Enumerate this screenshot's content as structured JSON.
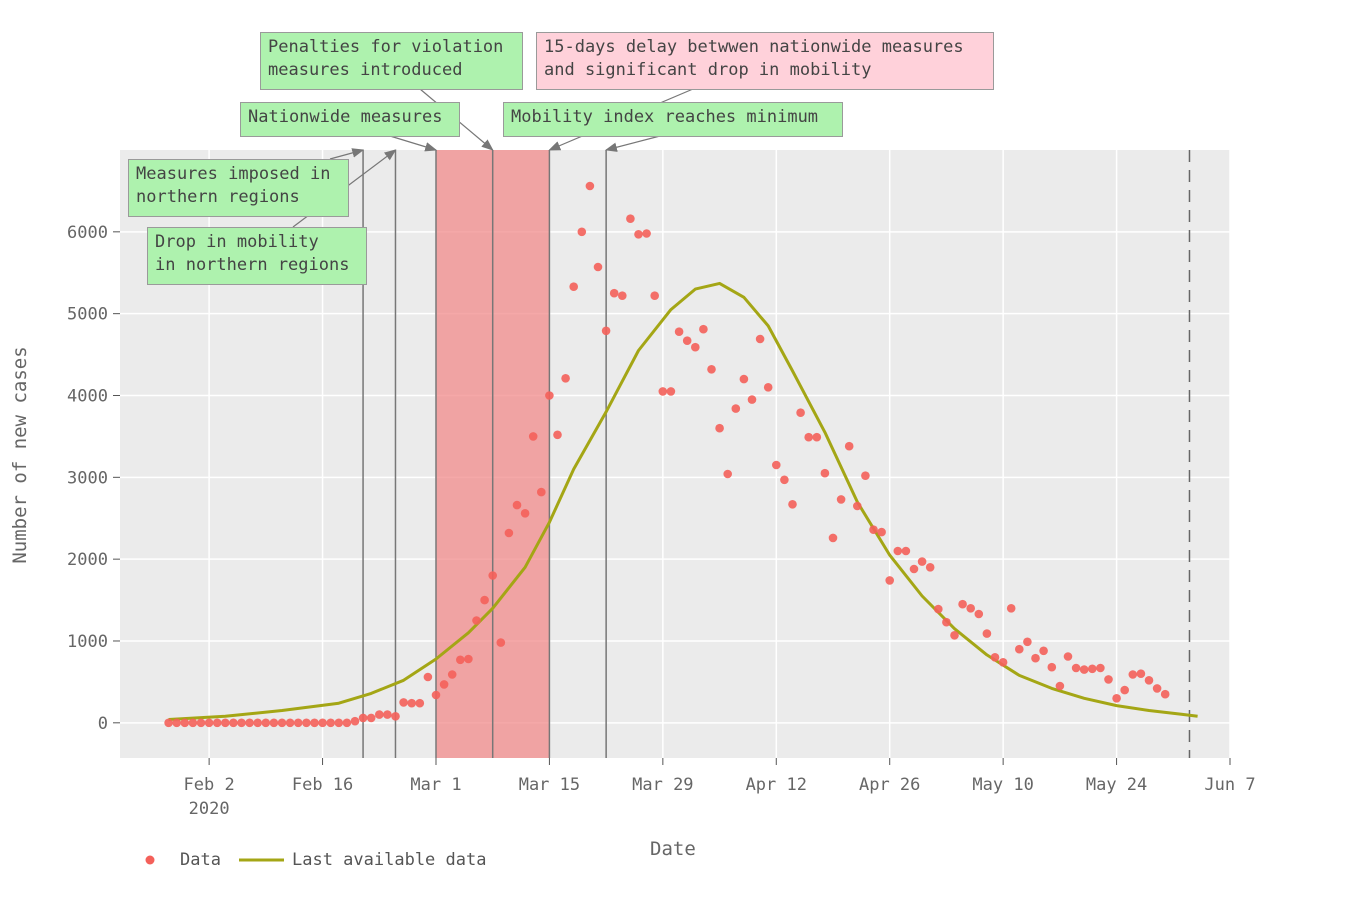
{
  "chart_data": {
    "type": "scatter",
    "xlabel": "Date",
    "ylabel": "Number of new cases",
    "x_ticks": [
      {
        "date": "2020-02-02",
        "label": "Feb 2",
        "sublabel": "2020"
      },
      {
        "date": "2020-02-16",
        "label": "Feb 16"
      },
      {
        "date": "2020-03-01",
        "label": "Mar 1"
      },
      {
        "date": "2020-03-15",
        "label": "Mar 15"
      },
      {
        "date": "2020-03-29",
        "label": "Mar 29"
      },
      {
        "date": "2020-04-12",
        "label": "Apr 12"
      },
      {
        "date": "2020-04-26",
        "label": "Apr 26"
      },
      {
        "date": "2020-05-10",
        "label": "May 10"
      },
      {
        "date": "2020-05-24",
        "label": "May 24"
      },
      {
        "date": "2020-06-07",
        "label": "Jun 7"
      }
    ],
    "y_ticks": [
      0,
      1000,
      2000,
      3000,
      4000,
      5000,
      6000
    ],
    "xlim": [
      "2020-01-22",
      "2020-06-07"
    ],
    "ylim": [
      -430,
      7000
    ],
    "grid": true,
    "legend_position": "bottom-left",
    "series": [
      {
        "name": "Data",
        "type": "scatter",
        "color": "#f4605a",
        "start_date": "2020-01-28",
        "values": [
          0,
          0,
          0,
          0,
          0,
          0,
          0,
          0,
          0,
          0,
          0,
          0,
          0,
          0,
          0,
          0,
          0,
          0,
          0,
          0,
          0,
          0,
          0,
          20,
          60,
          60,
          100,
          100,
          80,
          250,
          240,
          240,
          560,
          340,
          470,
          590,
          770,
          780,
          1250,
          1500,
          1800,
          980,
          2320,
          2660,
          2560,
          3500,
          2820,
          4000,
          3520,
          4210,
          5330,
          6000,
          6560,
          5570,
          4790,
          5250,
          5220,
          6160,
          5970,
          5980,
          5220,
          4050,
          4050,
          4780,
          4670,
          4590,
          4810,
          4320,
          3600,
          3040,
          3840,
          4200,
          3950,
          4690,
          4100,
          3150,
          2970,
          2670,
          3790,
          3490,
          3490,
          3050,
          2260,
          2730,
          3380,
          2650,
          3020,
          2360,
          2330,
          1740,
          2100,
          2100,
          1880,
          1970,
          1900,
          1390,
          1230,
          1070,
          1450,
          1400,
          1330,
          1090,
          800,
          740,
          1400,
          900,
          990,
          790,
          880,
          680,
          450,
          810,
          670,
          650,
          660,
          670,
          530,
          300,
          400,
          590,
          600,
          520,
          420,
          350
        ]
      },
      {
        "name": "Last available data",
        "type": "line",
        "color": "#a4a615",
        "points": [
          [
            "2020-01-28",
            40
          ],
          [
            "2020-02-04",
            80
          ],
          [
            "2020-02-11",
            150
          ],
          [
            "2020-02-18",
            240
          ],
          [
            "2020-02-22",
            360
          ],
          [
            "2020-02-26",
            520
          ],
          [
            "2020-03-01",
            780
          ],
          [
            "2020-03-05",
            1100
          ],
          [
            "2020-03-08",
            1400
          ],
          [
            "2020-03-12",
            1900
          ],
          [
            "2020-03-15",
            2450
          ],
          [
            "2020-03-18",
            3100
          ],
          [
            "2020-03-22",
            3800
          ],
          [
            "2020-03-26",
            4550
          ],
          [
            "2020-03-30",
            5050
          ],
          [
            "2020-04-02",
            5300
          ],
          [
            "2020-04-05",
            5370
          ],
          [
            "2020-04-08",
            5200
          ],
          [
            "2020-04-11",
            4850
          ],
          [
            "2020-04-14",
            4300
          ],
          [
            "2020-04-18",
            3550
          ],
          [
            "2020-04-22",
            2700
          ],
          [
            "2020-04-26",
            2050
          ],
          [
            "2020-04-30",
            1550
          ],
          [
            "2020-05-04",
            1150
          ],
          [
            "2020-05-08",
            830
          ],
          [
            "2020-05-12",
            580
          ],
          [
            "2020-05-16",
            420
          ],
          [
            "2020-05-20",
            300
          ],
          [
            "2020-05-24",
            210
          ],
          [
            "2020-05-28",
            150
          ],
          [
            "2020-06-01",
            105
          ],
          [
            "2020-06-03",
            80
          ]
        ]
      }
    ],
    "shaded_regions": [
      {
        "from": "2020-03-01",
        "to": "2020-03-15",
        "color": "#f28b8b"
      }
    ],
    "vertical_lines": [
      {
        "date": "2020-02-21",
        "color": "#777777",
        "style": "solid"
      },
      {
        "date": "2020-02-25",
        "color": "#777777",
        "style": "solid"
      },
      {
        "date": "2020-03-01",
        "color": "#777777",
        "style": "solid"
      },
      {
        "date": "2020-03-08",
        "color": "#777777",
        "style": "solid"
      },
      {
        "date": "2020-03-15",
        "color": "#777777",
        "style": "solid"
      },
      {
        "date": "2020-03-22",
        "color": "#777777",
        "style": "solid"
      },
      {
        "date": "2020-06-02",
        "color": "#666666",
        "style": "dashed"
      }
    ],
    "annotations": [
      {
        "id": "penalties",
        "lines": [
          "Penalties for violation",
          "measures introduced"
        ],
        "color": "pink-green",
        "bg": "#aef2ae",
        "arrow_to_date": "2020-03-08"
      },
      {
        "id": "delay",
        "lines": [
          "15-days delay betwwen nationwide measures",
          "and significant drop in mobility"
        ],
        "bg": "#ffd1da",
        "arrow_to_date": "2020-03-15"
      },
      {
        "id": "nationwide",
        "lines": [
          "Nationwide measures"
        ],
        "bg": "#aef2ae",
        "arrow_to_date": "2020-03-01"
      },
      {
        "id": "mobility-min",
        "lines": [
          "Mobility index reaches minimum"
        ],
        "bg": "#aef2ae",
        "arrow_to_date": "2020-03-22"
      },
      {
        "id": "northern-measures",
        "lines": [
          "Measures imposed in",
          "northern regions"
        ],
        "bg": "#aef2ae",
        "arrow_to_date": "2020-02-21"
      },
      {
        "id": "northern-mobility",
        "lines": [
          "Drop in mobility",
          "in northern regions"
        ],
        "bg": "#aef2ae",
        "arrow_to_date": "2020-02-25"
      }
    ]
  }
}
